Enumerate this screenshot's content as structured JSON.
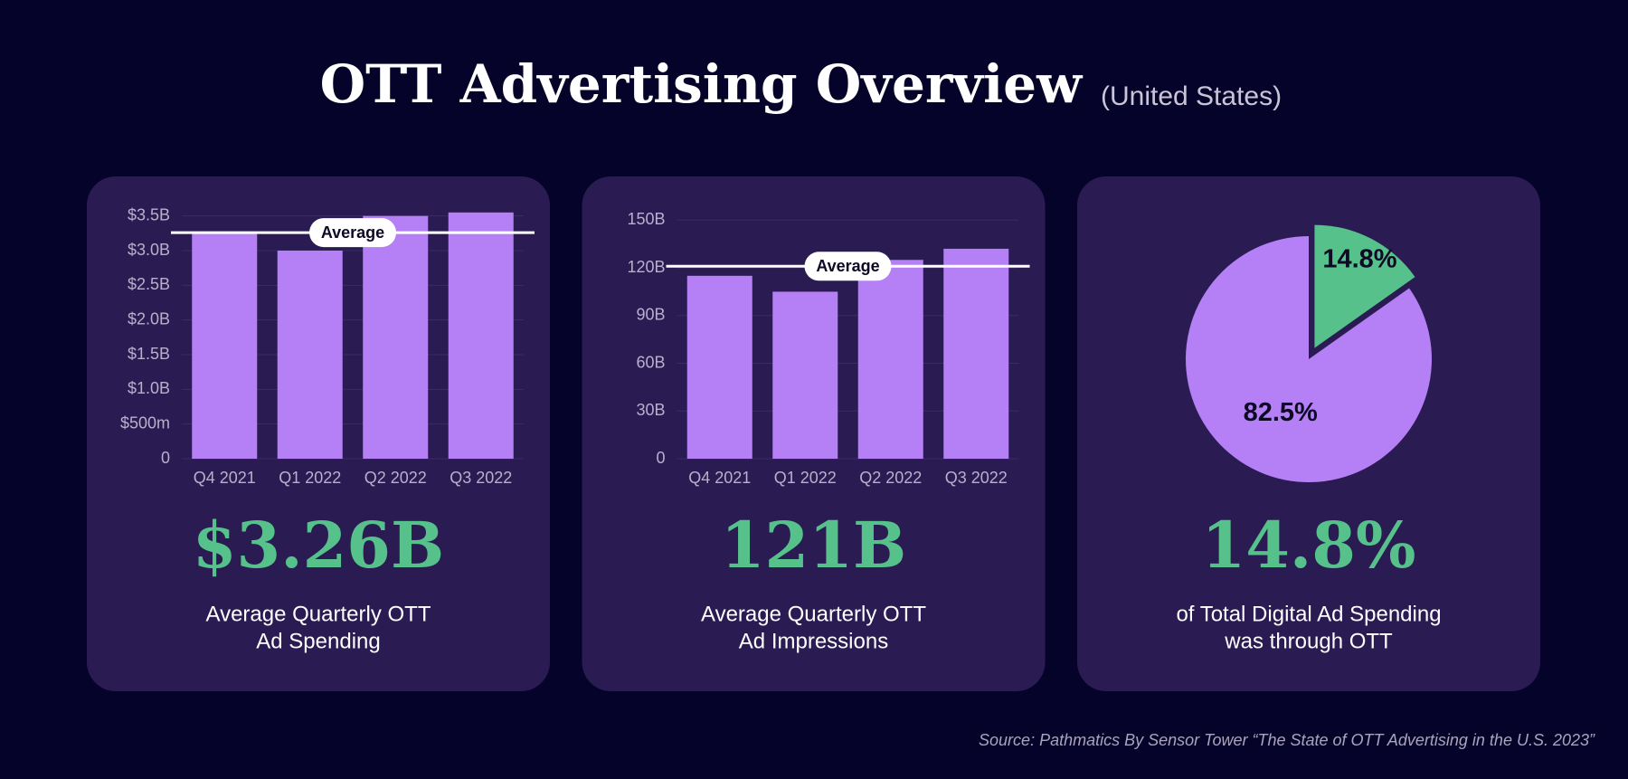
{
  "title": "OTT Advertising Overview",
  "subtitle": "(United States)",
  "source": "Source: Pathmatics By Sensor Tower “The State of OTT Advertising in the U.S. 2023”",
  "chart_data": [
    {
      "type": "bar",
      "categories": [
        "Q4 2021",
        "Q1 2022",
        "Q2 2022",
        "Q3 2022"
      ],
      "values": [
        3.25,
        3.0,
        3.5,
        3.55
      ],
      "color": "#b580f5",
      "ylim": [
        0,
        3.6
      ],
      "yticks": [
        0,
        {
          "value": 0.5,
          "label": "$500m"
        },
        {
          "value": 1.0,
          "label": "$1.0B"
        },
        {
          "value": 1.5,
          "label": "$1.5B"
        },
        {
          "value": 2.0,
          "label": "$2.0B"
        },
        {
          "value": 2.5,
          "label": "$2.5B"
        },
        {
          "value": 3.0,
          "label": "$3.0B"
        },
        {
          "value": 3.5,
          "label": "$3.5B"
        }
      ],
      "grid": true,
      "average": {
        "label": "Average",
        "value": 3.26
      },
      "stat": "$3.26B",
      "caption": [
        "Average Quarterly OTT",
        "Ad Spending"
      ]
    },
    {
      "type": "bar",
      "categories": [
        "Q4 2021",
        "Q1 2022",
        "Q2 2022",
        "Q3 2022"
      ],
      "values": [
        115,
        105,
        125,
        132
      ],
      "color": "#b580f5",
      "ylim": [
        0,
        157
      ],
      "yticks": [
        0,
        {
          "value": 30,
          "label": "30B"
        },
        {
          "value": 60,
          "label": "60B"
        },
        {
          "value": 90,
          "label": "90B"
        },
        {
          "value": 120,
          "label": "120B"
        },
        {
          "value": 150,
          "label": "150B"
        }
      ],
      "grid": true,
      "average": {
        "label": "Average",
        "value": 121
      },
      "stat": "121B",
      "caption": [
        "Average Quarterly OTT",
        "Ad Impressions"
      ]
    },
    {
      "type": "pie",
      "values": [
        14.8,
        82.5
      ],
      "value_labels": [
        "14.8%",
        "82.5%"
      ],
      "colors": [
        "#56c18a",
        "#b580f5"
      ],
      "stat": "14.8%",
      "caption": [
        "of Total Digital Ad Spending",
        "was through OTT"
      ]
    }
  ]
}
